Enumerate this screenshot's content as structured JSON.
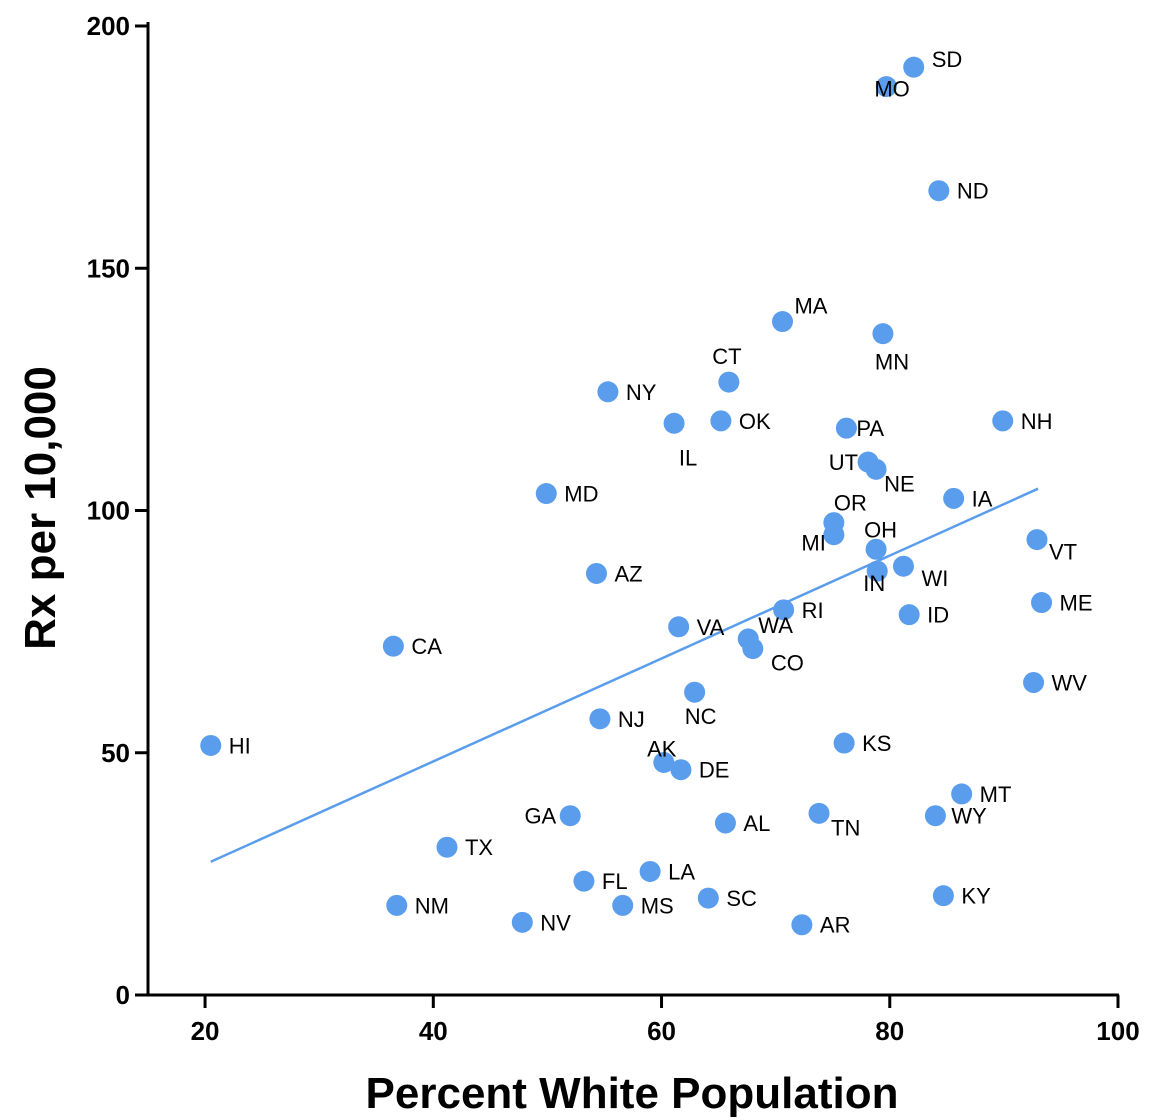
{
  "chart_data": {
    "type": "scatter",
    "title": "",
    "xlabel": "Percent White Population",
    "ylabel": "Rx per 10,000",
    "xlim": [
      15,
      100
    ],
    "ylim": [
      0,
      200
    ],
    "xticks": [
      20,
      40,
      60,
      80,
      100
    ],
    "yticks": [
      0,
      50,
      100,
      150,
      200
    ],
    "point_color": "#5a9ded",
    "line_color": "#5a9ded",
    "grid": false,
    "trendline": {
      "x": [
        20.5,
        93
      ],
      "y": [
        27.5,
        104.5
      ]
    },
    "points": [
      {
        "label": "HI",
        "x": 20.5,
        "y": 51.5
      },
      {
        "label": "CA",
        "x": 36.5,
        "y": 72
      },
      {
        "label": "NM",
        "x": 36.8,
        "y": 18.5
      },
      {
        "label": "TX",
        "x": 41.2,
        "y": 30.5
      },
      {
        "label": "NV",
        "x": 47.8,
        "y": 15
      },
      {
        "label": "MD",
        "x": 49.9,
        "y": 103.5
      },
      {
        "label": "GA",
        "x": 52,
        "y": 37
      },
      {
        "label": "FL",
        "x": 53.2,
        "y": 23.5
      },
      {
        "label": "AZ",
        "x": 54.3,
        "y": 87
      },
      {
        "label": "NJ",
        "x": 54.6,
        "y": 57
      },
      {
        "label": "NY",
        "x": 55.3,
        "y": 124.5
      },
      {
        "label": "MS",
        "x": 56.6,
        "y": 18.5
      },
      {
        "label": "LA",
        "x": 59,
        "y": 25.5
      },
      {
        "label": "AK",
        "x": 60.2,
        "y": 48
      },
      {
        "label": "IL",
        "x": 61.1,
        "y": 118
      },
      {
        "label": "DE",
        "x": 61.7,
        "y": 46.5
      },
      {
        "label": "VA",
        "x": 61.5,
        "y": 76
      },
      {
        "label": "NC",
        "x": 62.9,
        "y": 62.5
      },
      {
        "label": "SC",
        "x": 64.1,
        "y": 20
      },
      {
        "label": "OK",
        "x": 65.2,
        "y": 118.5
      },
      {
        "label": "AL",
        "x": 65.6,
        "y": 35.5
      },
      {
        "label": "CT",
        "x": 65.9,
        "y": 126.5
      },
      {
        "label": "WA",
        "x": 67.6,
        "y": 73.5
      },
      {
        "label": "CO",
        "x": 68,
        "y": 71.5
      },
      {
        "label": "MA",
        "x": 70.6,
        "y": 139
      },
      {
        "label": "RI",
        "x": 70.7,
        "y": 79.5
      },
      {
        "label": "AR",
        "x": 72.3,
        "y": 14.5
      },
      {
        "label": "TN",
        "x": 73.8,
        "y": 37.5
      },
      {
        "label": "MI",
        "x": 75.1,
        "y": 95
      },
      {
        "label": "OR",
        "x": 75.1,
        "y": 97.5
      },
      {
        "label": "KS",
        "x": 76,
        "y": 52
      },
      {
        "label": "PA",
        "x": 76.2,
        "y": 117
      },
      {
        "label": "UT",
        "x": 78.1,
        "y": 110
      },
      {
        "label": "NE",
        "x": 78.8,
        "y": 108.5
      },
      {
        "label": "OH",
        "x": 78.8,
        "y": 92
      },
      {
        "label": "IN",
        "x": 78.9,
        "y": 87.5
      },
      {
        "label": "MN",
        "x": 79.4,
        "y": 136.5
      },
      {
        "label": "MO",
        "x": 79.7,
        "y": 187.5
      },
      {
        "label": "WI",
        "x": 81.2,
        "y": 88.5
      },
      {
        "label": "ID",
        "x": 81.7,
        "y": 78.5
      },
      {
        "label": "SD",
        "x": 82.1,
        "y": 191.5
      },
      {
        "label": "WY",
        "x": 84,
        "y": 37
      },
      {
        "label": "ND",
        "x": 84.3,
        "y": 166
      },
      {
        "label": "KY",
        "x": 84.7,
        "y": 20.5
      },
      {
        "label": "IA",
        "x": 85.6,
        "y": 102.5
      },
      {
        "label": "MT",
        "x": 86.3,
        "y": 41.5
      },
      {
        "label": "NH",
        "x": 89.9,
        "y": 118.5
      },
      {
        "label": "WV",
        "x": 92.6,
        "y": 64.5
      },
      {
        "label": "VT",
        "x": 92.9,
        "y": 94
      },
      {
        "label": "ME",
        "x": 93.3,
        "y": 81
      }
    ]
  }
}
